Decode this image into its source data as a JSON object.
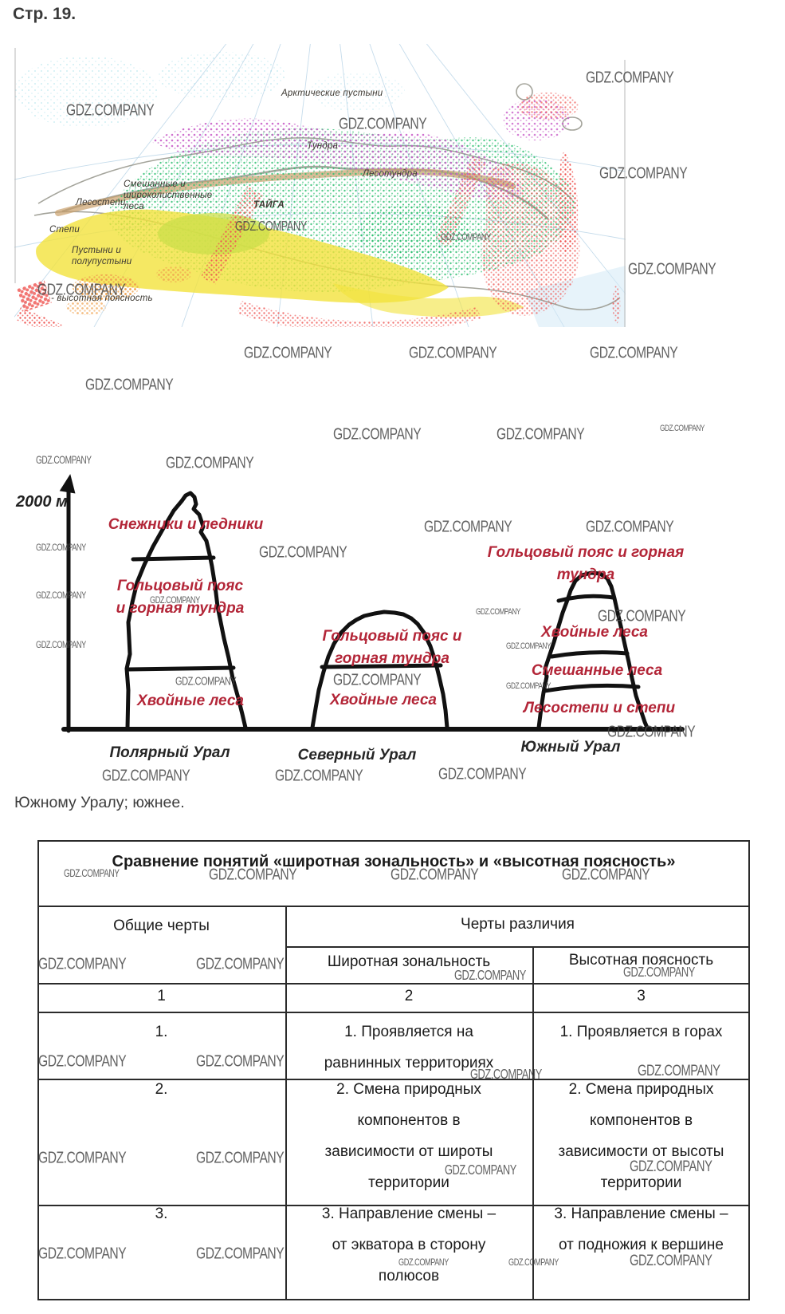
{
  "page": {
    "title": "Стр. 19."
  },
  "watermark": {
    "text": "GDZ.COMPANY",
    "color": "#4a4a4a"
  },
  "map": {
    "labels": {
      "arctic": "Арктические пустыни",
      "tundra": "Тундра",
      "forest_tundra": "Лесотундра",
      "taiga": "ТАЙГА",
      "mixed": "Смешанные и\nшироколиственные\nлеса",
      "forest_steppe": "Лесостепи",
      "steppe": "Степи",
      "desert": "Пустыни и\nполупустыни",
      "altitudinal_legend": "- высотная поясность"
    },
    "colors": {
      "taiga_green": "#2fbf71",
      "tundra_magenta": "#c95fc9",
      "mountains_red": "#ef5350",
      "steppe_yellow": "#f2e23c",
      "desert_orange": "#f0a24e",
      "forest_tundra_tan": "#c9a06b"
    }
  },
  "diagram": {
    "axis_label": "2000 м",
    "zone_label_color": "#b32638",
    "mountains": [
      {
        "name": "Полярный Урал",
        "zones": [
          "Снежники и ледники",
          "Гольцовый пояс\nи горная тундра",
          "Хвойные леса"
        ]
      },
      {
        "name": "Северный Урал",
        "zones": [
          "Гольцовый пояс и\nгорная тундра",
          "Хвойные леса"
        ]
      },
      {
        "name": "Южный Урал",
        "zones": [
          "Гольцовый пояс и горная тундра",
          "Хвойные леса",
          "Смешанные леса",
          "Лесостепи и степи"
        ]
      }
    ]
  },
  "caption": "Южному Уралу; южнее.",
  "table": {
    "title": "Сравнение понятий «широтная зональность» и «высотная поясность»",
    "headers": {
      "common": "Общие черты",
      "diff": "Черты различия",
      "lat": "Широтная зональность",
      "alt": "Высотная поясность"
    },
    "col_numbers": [
      "1",
      "2",
      "3"
    ],
    "rows": [
      {
        "common": "1.",
        "lat": "1. Проявляется на\nравнинных территориях",
        "alt": "1. Проявляется в горах"
      },
      {
        "common": "2.",
        "lat": "2. Смена природных\nкомпонентов в\nзависимости от широты\nтерритории",
        "alt": "2. Смена природных\nкомпонентов в\nзависимости от высоты\nтерритории"
      },
      {
        "common": "3.",
        "lat": "3. Направление смены –\nот экватора в сторону\nполюсов",
        "alt": "3. Направление смены –\nот подножия к вершине"
      }
    ]
  }
}
